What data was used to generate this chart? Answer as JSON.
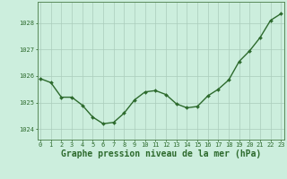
{
  "x": [
    0,
    1,
    2,
    3,
    4,
    5,
    6,
    7,
    8,
    9,
    10,
    11,
    12,
    13,
    14,
    15,
    16,
    17,
    18,
    19,
    20,
    21,
    22,
    23
  ],
  "y": [
    1025.9,
    1025.75,
    1025.2,
    1025.2,
    1024.9,
    1024.45,
    1024.2,
    1024.25,
    1024.6,
    1025.1,
    1025.4,
    1025.45,
    1025.3,
    1024.95,
    1024.8,
    1024.85,
    1025.25,
    1025.5,
    1025.85,
    1026.55,
    1026.95,
    1027.45,
    1028.1,
    1028.35
  ],
  "line_color": "#2d6a2d",
  "marker": "D",
  "marker_size": 2.0,
  "background_color": "#cceedd",
  "grid_color": "#aaccbb",
  "xlabel": "Graphe pression niveau de la mer (hPa)",
  "xlabel_fontsize": 7.0,
  "ylabel_ticks": [
    1024,
    1025,
    1026,
    1027,
    1028
  ],
  "xtick_labels": [
    "0",
    "1",
    "2",
    "3",
    "4",
    "5",
    "6",
    "7",
    "8",
    "9",
    "10",
    "11",
    "12",
    "13",
    "14",
    "15",
    "16",
    "17",
    "18",
    "19",
    "20",
    "21",
    "22",
    "23"
  ],
  "ylim": [
    1023.6,
    1028.8
  ],
  "xlim": [
    -0.3,
    23.3
  ],
  "tick_color": "#2d6a2d",
  "tick_fontsize": 5.0,
  "spine_color": "#5a8a5a",
  "linewidth": 1.0
}
